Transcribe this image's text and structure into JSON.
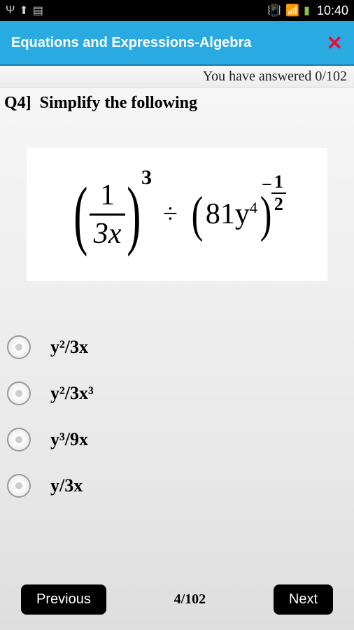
{
  "statusBar": {
    "time": "10:40"
  },
  "titleBar": {
    "title": "Equations and Expressions-Algebra"
  },
  "progress": {
    "text": "You have answered 0/102"
  },
  "question": {
    "number": "Q4]",
    "prompt": "Simplify the following",
    "formula": {
      "left_num": "1",
      "left_den": "3x",
      "left_exp": "3",
      "op": "÷",
      "right_base": "81y",
      "right_inner_exp": "4",
      "right_exp_num": "1",
      "right_exp_den": "2"
    }
  },
  "options": [
    {
      "label": "y²/3x"
    },
    {
      "label": "y²/3x³"
    },
    {
      "label": "y³/9x"
    },
    {
      "label": "y/3x"
    }
  ],
  "nav": {
    "prev": "Previous",
    "next": "Next",
    "page": "4/102"
  }
}
